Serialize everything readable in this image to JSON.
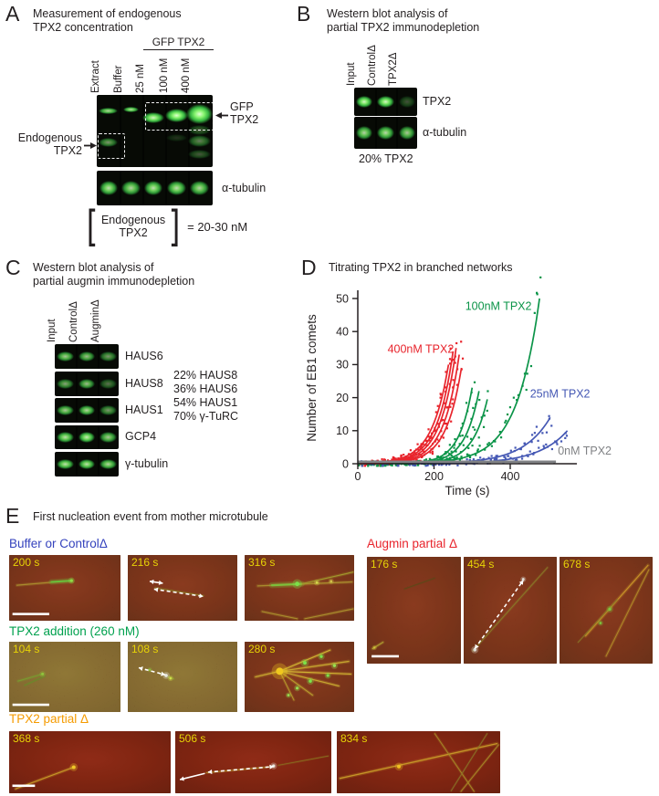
{
  "panels": {
    "A": {
      "letter": "A",
      "title1": "Measurement of endogenous",
      "title2": "TPX2 concentration",
      "group_label": "GFP TPX2",
      "lanes": [
        "Extract",
        "Buffer",
        "25 nM",
        "100 nM",
        "400 nM"
      ],
      "gfp_arrow_label1": "GFP",
      "gfp_arrow_label2": "TPX2",
      "endo_label1": "Endogenous",
      "endo_label2": "TPX2",
      "tubulin_label": "α-tubulin",
      "formula_top": "Endogenous",
      "formula_bottom": "TPX2",
      "formula_result": "= 20-30 nM",
      "top_blot_bands": [
        {
          "lane": 0,
          "y": 18,
          "h": 9,
          "w": 17,
          "o": 0.8
        },
        {
          "lane": 1,
          "y": 16,
          "h": 8,
          "w": 14,
          "o": 0.85
        },
        {
          "lane": 2,
          "y": 24,
          "h": 15,
          "w": 19,
          "o": 0.95
        },
        {
          "lane": 3,
          "y": 19,
          "h": 19,
          "w": 20,
          "o": 1
        },
        {
          "lane": 4,
          "y": 13,
          "h": 27,
          "w": 23,
          "o": 1
        },
        {
          "lane": 4,
          "y": 42,
          "h": 14,
          "w": 20,
          "o": 0.3
        },
        {
          "lane": 4,
          "y": 56,
          "h": 16,
          "w": 20,
          "o": 0.45
        },
        {
          "lane": 4,
          "y": 76,
          "h": 12,
          "w": 20,
          "o": 0.3
        },
        {
          "lane": 3,
          "y": 55,
          "h": 10,
          "w": 18,
          "o": 0.15
        },
        {
          "lane": 0,
          "y": 60,
          "h": 12,
          "w": 17,
          "o": 0.55
        }
      ],
      "bottom_blot_bands": [
        0.85,
        0.8,
        0.85,
        0.85,
        0.8
      ]
    },
    "B": {
      "letter": "B",
      "title1": "Western blot analysis of",
      "title2": "partial TPX2 immunodepletion",
      "lanes": [
        "Input",
        "ControlΔ",
        "TPX2Δ"
      ],
      "blots": [
        {
          "label": "TPX2",
          "bands": [
            0.95,
            0.95,
            0.28
          ]
        },
        {
          "label": "α-tubulin",
          "bands": [
            0.8,
            0.82,
            0.75
          ]
        }
      ],
      "caption": "20% TPX2"
    },
    "C": {
      "letter": "C",
      "title1": "Western blot analysis of",
      "title2": "partial augmin immunodepletion",
      "lanes": [
        "Input",
        "ControlΔ",
        "AugminΔ"
      ],
      "blots": [
        {
          "label": "HAUS6",
          "bands": [
            0.75,
            0.7,
            0.55
          ]
        },
        {
          "label": "HAUS8",
          "bands": [
            0.6,
            0.7,
            0.4
          ]
        },
        {
          "label": "HAUS1",
          "bands": [
            0.75,
            0.8,
            0.55
          ]
        },
        {
          "label": "GCP4",
          "bands": [
            0.85,
            0.9,
            0.75
          ]
        },
        {
          "label": "γ-tubulin",
          "bands": [
            0.85,
            0.85,
            0.8
          ]
        }
      ],
      "stats": [
        "22% HAUS8",
        "36% HAUS6",
        "54% HAUS1",
        "70% γ-TuRC"
      ]
    },
    "D": {
      "letter": "D",
      "title": "Titrating TPX2 in branched networks"
    },
    "E": {
      "letter": "E",
      "title": "First nucleation event from mother microtubule",
      "groups": [
        {
          "id": "buffer-or-control",
          "label": "Buffer or ControlΔ",
          "color": "#3442bd",
          "images": [
            {
              "time": "200 s",
              "bg": "a",
              "filaments": [
                [
                  7,
                  46,
                  56,
                  39,
                  "#ab8f2e",
                  1.2
                ],
                [
                  38,
                  41,
                  56,
                  39,
                  "#66c23c",
                  2
                ]
              ],
              "dots": [
                [
                  56,
                  39,
                  1.6,
                  "#8fdc46"
                ]
              ],
              "arrows": [],
              "scalebar": [
                3,
                88,
                33
              ]
            },
            {
              "time": "216 s",
              "bg": "a",
              "filaments": [
                [
                  25,
                  50,
                  69,
                  62,
                  "#8a7a28",
                  1
                ]
              ],
              "dots": [],
              "arrows": [
                [
                  20,
                  40,
                  32,
                  43,
                  0,
                  "both"
                ],
                [
                  24,
                  52,
                  69,
                  63,
                  1,
                  "both"
                ]
              ],
              "scalebar": null
            },
            {
              "time": "316 s",
              "bg": "a",
              "filaments": [
                [
                  12,
                  47,
                  98,
                  41,
                  "#ab8f2e",
                  1.3
                ],
                [
                  25,
                  46,
                  52,
                  44,
                  "#7cc23c",
                  2.2
                ],
                [
                  52,
                  44,
                  99,
                  26,
                  "#a39a2e",
                  1.2
                ],
                [
                  16,
                  86,
                  48,
                  97,
                  "#ab8f2e",
                  1.2
                ],
                [
                  55,
                  97,
                  99,
                  82,
                  "#ab8f2e",
                  1.2
                ]
              ],
              "dots": [
                [
                  48,
                  44,
                  2.4,
                  "#7ce04a"
                ],
                [
                  66,
                  42,
                  1.5,
                  "#d2d24a"
                ],
                [
                  79,
                  40,
                  1.4,
                  "#d2c24a"
                ]
              ],
              "arrows": [],
              "scalebar": null
            }
          ]
        },
        {
          "id": "augmin-partial",
          "label": "Augmin partial Δ",
          "color": "#e8242c",
          "images": [
            {
              "time": "176 s",
              "bg": "a",
              "filaments": [
                [
                  6,
                  86,
                  17,
                  80,
                  "#b0a030",
                  1.2
                ],
                [
                  40,
                  30,
                  72,
                  20,
                  "#5a4a18",
                  0.8
                ]
              ],
              "dots": [
                [
                  8,
                  85,
                  1.2,
                  "#cfc23c"
                ]
              ],
              "arrows": [],
              "scalebar": [
                5,
                92,
                29
              ]
            },
            {
              "time": "454 s",
              "bg": "a",
              "filaments": [
                [
                  10,
                  88,
                  90,
                  10,
                  "#8a7a28",
                  1
                ]
              ],
              "dots": [
                [
                  12,
                  87,
                  1.8,
                  "#e0e0d8"
                ],
                [
                  64,
                  21,
                  1.4,
                  "#e0e0d8"
                ]
              ],
              "arrows": [
                [
                  12,
                  86,
                  64,
                  22,
                  1,
                  "both"
                ]
              ],
              "scalebar": null
            },
            {
              "time": "678 s",
              "bg": "a",
              "filaments": [
                [
                  95,
                  8,
                  28,
                  74,
                  "#c89228",
                  1.3
                ],
                [
                  96,
                  12,
                  50,
                  93,
                  "#b08828",
                  1.1
                ],
                [
                  62,
                  40,
                  20,
                  80,
                  "#8a7828",
                  0.8
                ]
              ],
              "dots": [
                [
                  54,
                  49,
                  1.7,
                  "#7cc43c"
                ],
                [
                  44,
                  62,
                  1.4,
                  "#7cc43c"
                ]
              ],
              "arrows": [],
              "scalebar": null
            }
          ]
        },
        {
          "id": "tpx2-addition",
          "label": "TPX2 addition (260 nM)",
          "color": "#00a14e",
          "images": [
            {
              "time": "104 s",
              "bg": "b",
              "filaments": [
                [
                  8,
                  56,
                  30,
                  46,
                  "#7a9a30",
                  1.2
                ],
                [
                  14,
                  62,
                  32,
                  49,
                  "#6a8a2a",
                  1
                ]
              ],
              "dots": [
                [
                  30,
                  46,
                  1.5,
                  "#8fc43c"
                ]
              ],
              "arrows": [],
              "scalebar": [
                3,
                88,
                33
              ]
            },
            {
              "time": "108 s",
              "bg": "b",
              "filaments": [
                [
                  30,
                  45,
                  42,
                  53,
                  "#8a9a30",
                  1
                ]
              ],
              "dots": [
                [
                  35,
                  48,
                  1.8,
                  "#e8e8e0"
                ],
                [
                  39,
                  52,
                  1.4,
                  "#cfe04a"
                ],
                [
                  20,
                  40,
                  1.2,
                  "#8fc43c"
                ]
              ],
              "arrows": [
                [
                  10,
                  37,
                  34,
                  47,
                  1,
                  "both"
                ]
              ],
              "scalebar": null
            },
            {
              "time": "280 s",
              "bg": "a",
              "filaments": [
                [
                  32,
                  42,
                  78,
                  12,
                  "#d2b432",
                  1.2
                ],
                [
                  32,
                  42,
                  95,
                  28,
                  "#c8a830",
                  1.3
                ],
                [
                  32,
                  42,
                  97,
                  46,
                  "#d2b432",
                  1.2
                ],
                [
                  32,
                  42,
                  86,
                  63,
                  "#c8a830",
                  1.2
                ],
                [
                  32,
                  42,
                  62,
                  76,
                  "#b89a2e",
                  1.2
                ],
                [
                  32,
                  42,
                  45,
                  83,
                  "#b89a2e",
                  1
                ],
                [
                  10,
                  50,
                  32,
                  42,
                  "#c8a830",
                  1.4
                ]
              ],
              "dots": [
                [
                  32,
                  42,
                  4,
                  "#f0c81e"
                ],
                [
                  55,
                  30,
                  2,
                  "#7ce04a"
                ],
                [
                  70,
                  21,
                  1.7,
                  "#7ce04a"
                ],
                [
                  82,
                  34,
                  1.7,
                  "#96e050"
                ],
                [
                  60,
                  56,
                  1.8,
                  "#7ce04a"
                ],
                [
                  48,
                  66,
                  1.6,
                  "#96e050"
                ],
                [
                  76,
                  48,
                  1.6,
                  "#7ce04a"
                ],
                [
                  40,
                  76,
                  1.4,
                  "#96e050"
                ]
              ],
              "arrows": [],
              "scalebar": null
            }
          ]
        },
        {
          "id": "tpx2-partial",
          "label": "TPX2 partial Δ",
          "color": "#f59b00",
          "images": [
            {
              "time": "368 s",
              "bg": "c",
              "filaments": [
                [
                  4,
                  93,
                  40,
                  58,
                  "#c89a28",
                  1.2
                ]
              ],
              "dots": [
                [
                  40,
                  58,
                  2,
                  "#f0c828"
                ]
              ],
              "arrows": [],
              "scalebar": [
                2,
                86,
                14
              ]
            },
            {
              "time": "506 s",
              "bg": "c",
              "filaments": [
                [
                  20,
                  67,
                  63,
                  57,
                  "#b08a28",
                  1
                ],
                [
                  66,
                  55,
                  98,
                  40,
                  "#8a7020",
                  0.8
                ]
              ],
              "dots": [
                [
                  63,
                  56,
                  1.7,
                  "#e8e8e0"
                ]
              ],
              "arrows": [
                [
                  19,
                  68,
                  3,
                  78,
                  0,
                  "end"
                ],
                [
                  21,
                  66,
                  63,
                  57,
                  1,
                  "both"
                ]
              ],
              "scalebar": null
            },
            {
              "time": "834 s",
              "bg": "c",
              "filaments": [
                [
                  2,
                  76,
                  98,
                  20,
                  "#c89a28",
                  1.3
                ],
                [
                  60,
                  4,
                  84,
                  97,
                  "#a88828",
                  1
                ],
                [
                  76,
                  97,
                  99,
                  22,
                  "#a88828",
                  1
                ],
                [
                  92,
                  4,
                  70,
                  96,
                  "#8a7828",
                  0.8
                ]
              ],
              "dots": [
                [
                  38,
                  57,
                  2,
                  "#f0c020"
                ]
              ],
              "arrows": [],
              "scalebar": null
            }
          ]
        }
      ]
    }
  },
  "chart_data": {
    "type": "scatter",
    "title": "Titrating TPX2 in branched networks",
    "xlabel": "Time (s)",
    "ylabel": "Number of EB1 comets",
    "xlim": [
      0,
      575
    ],
    "ylim": [
      -1,
      54
    ],
    "xticks": [
      0,
      200,
      400
    ],
    "yticks": [
      0,
      10,
      20,
      30,
      40,
      50
    ],
    "grid": false,
    "legend_position": "inline-labels",
    "series": [
      {
        "name": "400nM TPX2",
        "color": "#e8242c",
        "label_x": 78,
        "label_y": 33.5,
        "curves": [
          {
            "t_start": 40,
            "t_end": 238,
            "y_end": 30
          },
          {
            "t_start": 55,
            "t_end": 250,
            "y_end": 34
          },
          {
            "t_start": 65,
            "t_end": 258,
            "y_end": 35
          },
          {
            "t_start": 75,
            "t_end": 266,
            "y_end": 33
          },
          {
            "t_start": 85,
            "t_end": 272,
            "y_end": 29
          }
        ]
      },
      {
        "name": "100nM TPX2",
        "color": "#0b9448",
        "label_x": 282,
        "label_y": 46.5,
        "curves": [
          {
            "t_start": 148,
            "t_end": 300,
            "y_end": 23
          },
          {
            "t_start": 160,
            "t_end": 318,
            "y_end": 22
          },
          {
            "t_start": 175,
            "t_end": 340,
            "y_end": 19.5
          },
          {
            "t_start": 168,
            "t_end": 477,
            "y_end": 50
          }
        ]
      },
      {
        "name": "25nM TPX2",
        "color": "#4558b4",
        "label_x": 452,
        "label_y": 20,
        "curves": [
          {
            "t_start": 228,
            "t_end": 505,
            "y_end": 14
          },
          {
            "t_start": 278,
            "t_end": 550,
            "y_end": 10
          }
        ]
      },
      {
        "name": "0nM TPX2",
        "color": "#808285",
        "label_x": 525,
        "label_y": 2.8,
        "curves": [
          {
            "flat": true,
            "t_start": 0,
            "t_end": 520,
            "y_end": 0.6
          }
        ]
      }
    ]
  }
}
